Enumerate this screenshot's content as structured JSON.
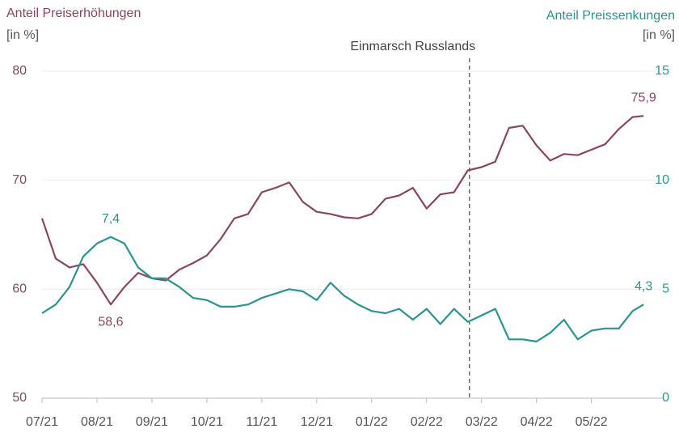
{
  "chart_data": {
    "type": "line",
    "title_left": "Anteil Preiserhöhungen",
    "unit_left": "[in %]",
    "title_right": "Anteil Preissenkungen",
    "unit_right": "[in %]",
    "x": [
      0,
      0.25,
      0.5,
      0.75,
      1,
      1.25,
      1.5,
      1.75,
      2,
      2.25,
      2.5,
      2.75,
      3,
      3.25,
      3.5,
      3.75,
      4,
      4.25,
      4.5,
      4.75,
      5,
      5.25,
      5.5,
      5.75,
      6,
      6.25,
      6.5,
      6.75,
      7,
      7.25,
      7.5,
      7.75,
      8,
      8.25,
      8.5,
      8.75,
      9,
      9.25,
      9.5,
      9.75,
      10,
      10.25,
      10.5,
      10.75,
      10.95
    ],
    "xlim": [
      0,
      11.3
    ],
    "xticks": [
      {
        "value": 0,
        "label": "07/21"
      },
      {
        "value": 1,
        "label": "08/21"
      },
      {
        "value": 2,
        "label": "09/21"
      },
      {
        "value": 3,
        "label": "10/21"
      },
      {
        "value": 4,
        "label": "11/21"
      },
      {
        "value": 5,
        "label": "12/21"
      },
      {
        "value": 6,
        "label": "01/22"
      },
      {
        "value": 7,
        "label": "02/22"
      },
      {
        "value": 8,
        "label": "03/22"
      },
      {
        "value": 9,
        "label": "04/22"
      },
      {
        "value": 10,
        "label": "05/22"
      }
    ],
    "ylim": [
      50,
      80
    ],
    "yticks": [
      50,
      60,
      70,
      80
    ],
    "y2lim": [
      0,
      15
    ],
    "y2ticks": [
      0,
      5,
      10,
      15
    ],
    "grid": true,
    "annotation": {
      "text": "Einmarsch Russlands",
      "x": 7.78
    },
    "series": [
      {
        "name": "Anteil Preiserhöhungen",
        "color": "#8b4560",
        "axis": "y",
        "values": [
          66.5,
          62.8,
          62.0,
          62.3,
          60.6,
          58.6,
          60.2,
          61.5,
          61.0,
          60.8,
          61.8,
          62.4,
          63.1,
          64.6,
          66.5,
          66.9,
          68.9,
          69.3,
          69.8,
          68.0,
          67.1,
          66.9,
          66.6,
          66.5,
          66.9,
          68.3,
          68.6,
          69.3,
          67.4,
          68.7,
          68.9,
          70.9,
          71.2,
          71.7,
          74.8,
          75.0,
          73.2,
          71.8,
          72.4,
          72.3,
          72.8,
          73.3,
          74.7,
          75.8,
          75.9
        ],
        "value_labels": [
          null,
          null,
          null,
          null,
          null,
          "58,6",
          null,
          null,
          null,
          null,
          null,
          null,
          null,
          null,
          null,
          null,
          null,
          null,
          null,
          null,
          null,
          null,
          null,
          null,
          null,
          null,
          null,
          null,
          null,
          null,
          null,
          null,
          null,
          null,
          null,
          null,
          null,
          null,
          null,
          null,
          null,
          null,
          null,
          null,
          "75,9"
        ]
      },
      {
        "name": "Anteil Preissenkungen",
        "color": "#2a9490",
        "axis": "y2",
        "values": [
          3.9,
          4.3,
          5.1,
          6.5,
          7.1,
          7.4,
          7.1,
          6.0,
          5.5,
          5.5,
          5.1,
          4.6,
          4.5,
          4.2,
          4.2,
          4.3,
          4.6,
          4.8,
          5.0,
          4.9,
          4.5,
          5.3,
          4.7,
          4.3,
          4.0,
          3.9,
          4.1,
          3.6,
          4.1,
          3.4,
          4.1,
          3.5,
          3.8,
          4.1,
          2.7,
          2.7,
          2.6,
          3.0,
          3.6,
          2.7,
          3.1,
          3.2,
          3.2,
          4.0,
          4.3
        ],
        "value_labels": [
          null,
          null,
          null,
          null,
          null,
          "7,4",
          null,
          null,
          null,
          null,
          null,
          null,
          null,
          null,
          null,
          null,
          null,
          null,
          null,
          null,
          null,
          null,
          null,
          null,
          null,
          null,
          null,
          null,
          null,
          null,
          null,
          null,
          null,
          null,
          null,
          null,
          null,
          null,
          null,
          null,
          null,
          null,
          null,
          null,
          "4,3"
        ]
      }
    ]
  }
}
